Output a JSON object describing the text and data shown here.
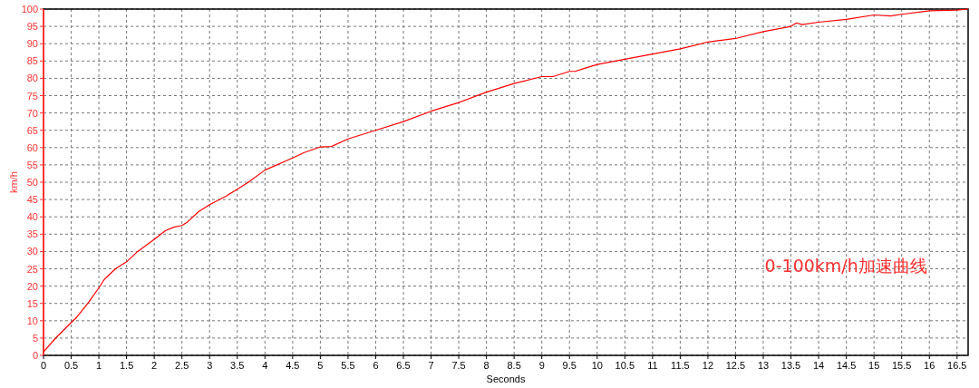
{
  "chart_data": {
    "type": "line",
    "xlabel": "Seconds",
    "ylabel": "km/h",
    "annotations": [
      "0-100km/h加速曲线"
    ],
    "x": [
      0,
      0.25,
      0.5,
      0.6,
      0.8,
      1,
      1.1,
      1.3,
      1.5,
      1.7,
      2,
      2.2,
      2.35,
      2.5,
      2.6,
      2.8,
      3,
      3.3,
      3.5,
      3.7,
      4,
      4.5,
      4.7,
      5,
      5.2,
      5.5,
      6,
      6.5,
      7,
      7.5,
      8,
      8.5,
      9,
      9.2,
      9.5,
      9.6,
      9.8,
      10,
      10.5,
      11,
      11.5,
      12,
      12.5,
      13,
      13.5,
      13.6,
      13.7,
      14,
      14.5,
      15,
      15.3,
      15.5,
      16,
      16.5,
      16.7
    ],
    "series": [
      {
        "color": "#ff0000",
        "values": [
          1,
          5.5,
          9.5,
          11,
          15,
          19.5,
          22,
          25,
          27,
          30,
          33.5,
          36,
          37,
          37.5,
          38.5,
          41.5,
          43.5,
          46,
          48,
          50,
          53.5,
          57,
          58.5,
          60.2,
          60.3,
          62.5,
          65,
          67.5,
          70.5,
          73,
          76,
          78.5,
          80.5,
          80.5,
          82,
          82,
          83,
          84,
          85.5,
          87,
          88.5,
          90.5,
          91.5,
          93.5,
          95,
          96,
          95.5,
          96.2,
          97,
          98.3,
          98,
          98.5,
          99.5,
          99.7,
          100
        ]
      }
    ],
    "xlim": [
      0,
      16.7
    ],
    "ylim": [
      0,
      100
    ],
    "xticks": [
      0,
      0.5,
      1,
      1.5,
      2,
      2.5,
      3,
      3.5,
      4,
      4.5,
      5,
      5.5,
      6,
      6.5,
      7,
      7.5,
      8,
      8.5,
      9,
      9.5,
      10,
      10.5,
      11,
      11.5,
      12,
      12.5,
      13,
      13.5,
      14,
      14.5,
      15,
      15.5,
      16,
      16.5
    ],
    "yticks": [
      0,
      5,
      10,
      15,
      20,
      25,
      30,
      35,
      40,
      45,
      50,
      55,
      60,
      65,
      70,
      75,
      80,
      85,
      90,
      95,
      100
    ],
    "grid": true,
    "marker": "none",
    "line_style": "solid"
  }
}
